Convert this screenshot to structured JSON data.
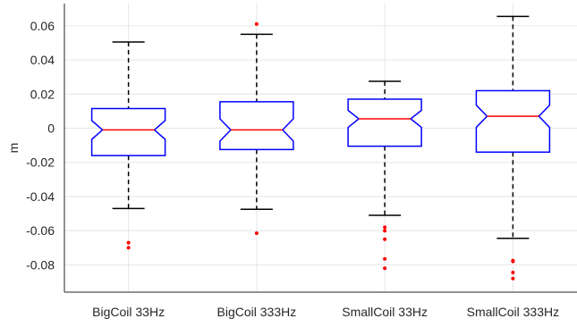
{
  "chart_data": {
    "type": "boxplot",
    "xlabel": "",
    "ylabel": "m",
    "ylim": [
      -0.096,
      0.073
    ],
    "yticks": [
      0.06,
      0.04,
      0.02,
      0,
      -0.02,
      -0.04,
      -0.06,
      -0.08
    ],
    "ytick_labels": [
      "0.06",
      "0.04",
      "0.02",
      "0",
      "-0.02",
      "-0.04",
      "-0.06",
      "-0.08"
    ],
    "grid": true,
    "categories": [
      "BigCoil 33Hz",
      "BigCoil 333Hz",
      "SmallCoil 33Hz",
      "SmallCoil 333Hz"
    ],
    "boxes": [
      {
        "whisker_high": 0.0505,
        "q3": 0.0115,
        "median": -0.001,
        "q1": -0.016,
        "whisker_low": -0.047,
        "notch_high": 0.0045,
        "notch_low": -0.0065,
        "outliers": [
          -0.067,
          -0.07
        ]
      },
      {
        "whisker_high": 0.055,
        "q3": 0.0155,
        "median": -0.001,
        "q1": -0.0125,
        "whisker_low": -0.0475,
        "notch_high": 0.0055,
        "notch_low": -0.0075,
        "outliers": [
          0.061,
          -0.0615
        ]
      },
      {
        "whisker_high": 0.0275,
        "q3": 0.017,
        "median": 0.0055,
        "q1": -0.0105,
        "whisker_low": -0.051,
        "notch_high": 0.0105,
        "notch_low": 0.0005,
        "outliers": [
          -0.058,
          -0.06,
          -0.065,
          -0.0765,
          -0.082
        ]
      },
      {
        "whisker_high": 0.0655,
        "q3": 0.022,
        "median": 0.007,
        "q1": -0.014,
        "whisker_low": -0.0645,
        "notch_high": 0.0135,
        "notch_low": 0.0005,
        "outliers": [
          -0.0775,
          -0.078,
          -0.0845,
          -0.088
        ]
      }
    ],
    "colors": {
      "box": "#0000ff",
      "median": "#ff0000",
      "outlier": "#ff0000",
      "whisker": "#000000"
    }
  }
}
